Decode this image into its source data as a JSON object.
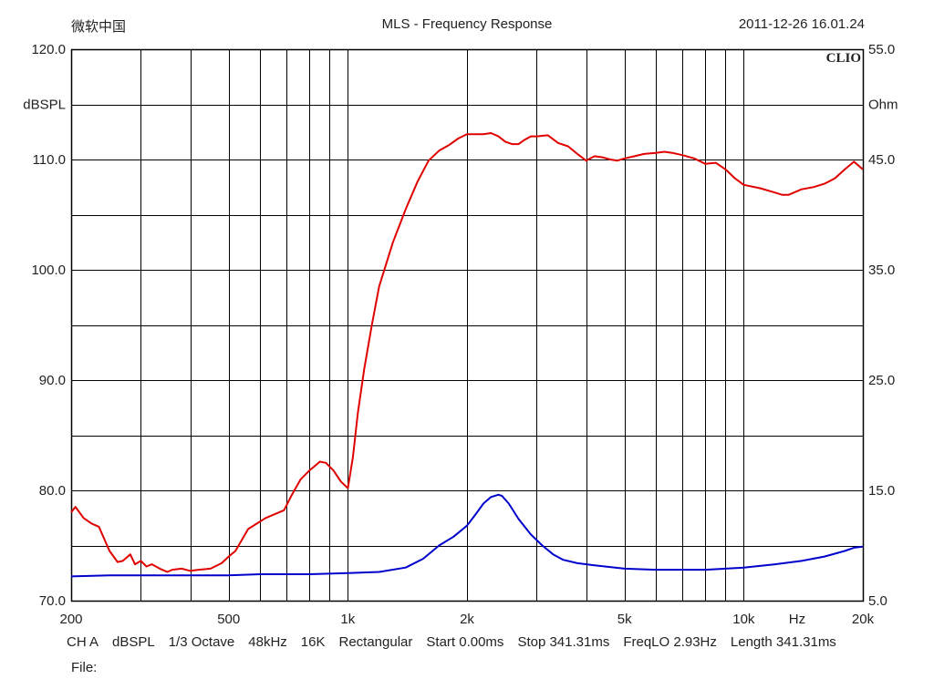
{
  "header": {
    "left": "微软中国",
    "title": "MLS - Frequency Response",
    "datetime": "2011-12-26 16.01.24",
    "brand": "CLIO"
  },
  "footer": {
    "items": [
      "CH A",
      "dBSPL",
      "1/3 Octave",
      "48kHz",
      "16K",
      "Rectangular",
      "Start 0.00ms",
      "Stop 341.31ms",
      "FreqLO 2.93Hz",
      "Length 341.31ms"
    ],
    "file_label": "File:"
  },
  "colors": {
    "spl": "#e00000",
    "impedance": "#0000cc",
    "grid": "#000000"
  },
  "chart_data": {
    "type": "line",
    "title": "MLS - Frequency Response",
    "x_scale": "log",
    "xlim": [
      200,
      20000
    ],
    "x_ticks": [
      200,
      500,
      1000,
      2000,
      5000,
      10000,
      20000
    ],
    "x_tick_labels": [
      "200",
      "500",
      "1k",
      "2k",
      "5k",
      "10k",
      "20k"
    ],
    "x_unit_label": "Hz",
    "ylim_left": [
      70,
      120
    ],
    "ylabel_left": "dBSPL",
    "y_ticks_left": [
      70,
      80,
      90,
      100,
      110,
      120
    ],
    "y_tick_labels_left": [
      "70.0",
      "80.0",
      "90.0",
      "100.0",
      "110.0",
      "120.0"
    ],
    "ylim_right": [
      5,
      55
    ],
    "ylabel_right": "Ohm",
    "y_ticks_right": [
      5,
      15,
      25,
      35,
      45,
      55
    ],
    "y_tick_labels_right": [
      "5.0",
      "15.0",
      "25.0",
      "35.0",
      "45.0",
      "55.0"
    ],
    "grid": true,
    "series": [
      {
        "axis": "left",
        "x": [
          200,
          205,
          215,
          225,
          235,
          250,
          262,
          270,
          282,
          290,
          300,
          310,
          320,
          335,
          350,
          360,
          380,
          400,
          420,
          450,
          480,
          500,
          520,
          560,
          620,
          690,
          720,
          760,
          800,
          850,
          880,
          920,
          960,
          1000,
          1030,
          1060,
          1100,
          1150,
          1200,
          1300,
          1400,
          1500,
          1600,
          1700,
          1800,
          1900,
          2000,
          2100,
          2200,
          2300,
          2400,
          2500,
          2600,
          2700,
          2800,
          2900,
          3000,
          3200,
          3400,
          3600,
          3800,
          4000,
          4200,
          4400,
          4600,
          4800,
          5000,
          5300,
          5600,
          6000,
          6300,
          6600,
          7000,
          7500,
          8000,
          8500,
          9000,
          9500,
          10000,
          11000,
          12000,
          12500,
          13000,
          14000,
          15000,
          16000,
          17000,
          18000,
          19000,
          20000
        ],
        "values": [
          78.0,
          78.5,
          77.5,
          77.0,
          76.7,
          74.5,
          73.5,
          73.6,
          74.2,
          73.3,
          73.6,
          73.1,
          73.3,
          72.9,
          72.6,
          72.8,
          72.9,
          72.7,
          72.8,
          72.9,
          73.4,
          74.0,
          74.5,
          76.5,
          77.5,
          78.2,
          79.5,
          81.0,
          81.8,
          82.6,
          82.5,
          81.8,
          80.8,
          80.2,
          83.0,
          87.0,
          91.0,
          95.0,
          98.5,
          102.5,
          105.5,
          108.0,
          109.9,
          110.8,
          111.3,
          111.9,
          112.3,
          112.3,
          112.3,
          112.4,
          112.1,
          111.6,
          111.4,
          111.4,
          111.8,
          112.1,
          112.1,
          112.2,
          111.5,
          111.2,
          110.5,
          109.9,
          110.3,
          110.2,
          110.0,
          109.9,
          110.1,
          110.3,
          110.5,
          110.6,
          110.7,
          110.6,
          110.4,
          110.1,
          109.6,
          109.7,
          109.1,
          108.3,
          107.7,
          107.4,
          107.0,
          106.8,
          106.8,
          107.3,
          107.5,
          107.8,
          108.3,
          109.1,
          109.8,
          109.1
        ]
      },
      {
        "axis": "right",
        "x": [
          200,
          250,
          300,
          400,
          500,
          600,
          800,
          1000,
          1200,
          1400,
          1550,
          1700,
          1850,
          2000,
          2100,
          2200,
          2300,
          2400,
          2450,
          2550,
          2700,
          2900,
          3100,
          3300,
          3500,
          3800,
          4200,
          5000,
          6000,
          7000,
          8000,
          9000,
          10000,
          12000,
          14000,
          16000,
          18000,
          19000,
          20000
        ],
        "values": [
          7.2,
          7.3,
          7.3,
          7.3,
          7.3,
          7.4,
          7.4,
          7.5,
          7.6,
          8.0,
          8.8,
          10.0,
          10.8,
          11.8,
          12.8,
          13.8,
          14.4,
          14.6,
          14.5,
          13.8,
          12.4,
          11.0,
          10.0,
          9.2,
          8.7,
          8.4,
          8.2,
          7.9,
          7.8,
          7.8,
          7.8,
          7.9,
          8.0,
          8.3,
          8.6,
          9.0,
          9.5,
          9.8,
          9.9
        ]
      }
    ]
  }
}
